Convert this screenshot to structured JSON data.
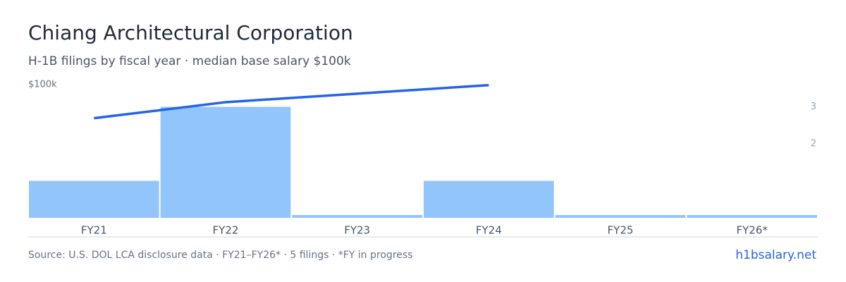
{
  "chart_data": {
    "type": "bar",
    "title": "Chiang Architectural Corporation",
    "subtitle": "H-1B filings by fiscal year · median base salary $100k",
    "categories": [
      "FY21",
      "FY22",
      "FY23",
      "FY24",
      "FY25",
      "FY26*"
    ],
    "values": [
      1,
      3,
      0,
      1,
      0,
      0
    ],
    "color": "#93c5fd",
    "ylim": [
      0,
      3.6
    ],
    "yticks": [
      2,
      3
    ],
    "line_values": [
      93700,
      96700,
      98300,
      99900,
      null,
      null
    ],
    "line_color": "#2563eb",
    "y2lim": [
      75000,
      100000
    ],
    "y2ticks": [
      {
        "value": 100000,
        "label": "$100k"
      }
    ],
    "source": "Source: U.S. DOL LCA disclosure data · FY21–FY26* · 5 filings · *FY in progress",
    "site": "h1bsalary.net"
  }
}
